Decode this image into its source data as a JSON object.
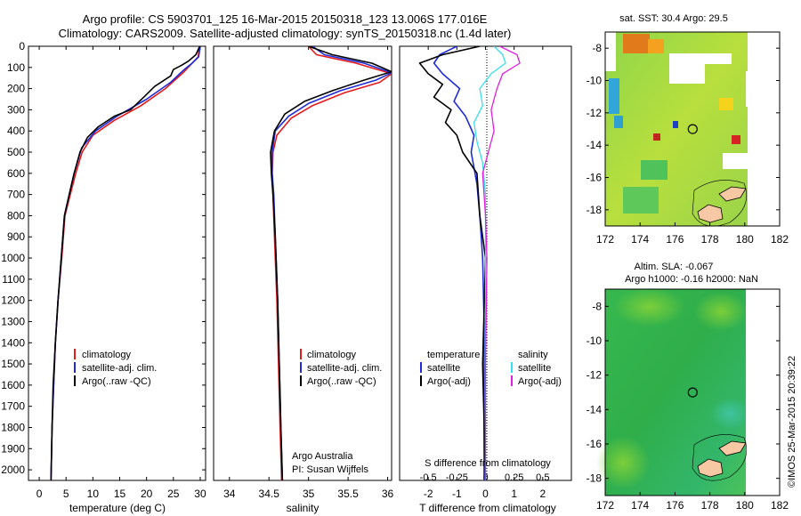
{
  "header": {
    "line1": "Argo profile: CS 5903701_125 16-Mar-2015 20150318_123 13.006S 177.016E",
    "line2": "Climatology: CARS2009. Satellite-adjusted climatology: synTS_20150318.nc (1.4d later)"
  },
  "colors": {
    "climatology": "#e41a1c",
    "satellite": "#1f2bd6",
    "argo": "#000000",
    "sal_satellite": "#33e0f0",
    "sal_argo": "#e020e0"
  },
  "chart_data": [
    {
      "type": "line",
      "name": "temperature-profile",
      "xlabel": "temperature (deg C)",
      "ylabel": "",
      "xlim": [
        -2,
        31
      ],
      "ylim": [
        2050,
        0
      ],
      "xticks": [
        0,
        5,
        10,
        15,
        20,
        25,
        30
      ],
      "yticks": [
        0,
        100,
        200,
        300,
        400,
        500,
        600,
        700,
        800,
        900,
        1000,
        1100,
        1200,
        1300,
        1400,
        1500,
        1600,
        1700,
        1800,
        1900,
        2000
      ],
      "legend": [
        "climatology",
        "satellite-adj. clim.",
        "Argo(..raw -QC)"
      ],
      "series": [
        {
          "name": "climatology",
          "x": [
            29.9,
            29.6,
            28.5,
            27.0,
            23.5,
            19.0,
            14.0,
            10.0,
            8.0,
            6.8,
            5.8,
            4.8,
            4.2,
            3.5,
            3.0,
            2.7,
            2.4,
            2.2
          ],
          "y": [
            0,
            50,
            80,
            120,
            200,
            280,
            350,
            420,
            500,
            600,
            700,
            800,
            1000,
            1200,
            1400,
            1600,
            1800,
            2050
          ]
        },
        {
          "name": "satellite-adj. clim.",
          "x": [
            30.0,
            29.7,
            28.5,
            27.0,
            24.5,
            20.0,
            14.5,
            10.5,
            7.9,
            6.5,
            5.6,
            4.7,
            4.1,
            3.5,
            3.0,
            2.7,
            2.4,
            2.2
          ],
          "y": [
            0,
            50,
            80,
            110,
            170,
            250,
            330,
            400,
            480,
            600,
            700,
            800,
            1000,
            1200,
            1400,
            1600,
            1800,
            2050
          ]
        },
        {
          "name": "Argo(..raw -QC)",
          "x": [
            29.9,
            29.2,
            27.8,
            26.5,
            25.0,
            24.5,
            21.5,
            19.5,
            17.0,
            14.0,
            11.0,
            9.0,
            7.6,
            6.5,
            5.6,
            4.7,
            4.1,
            3.5,
            3.0,
            2.6,
            2.4,
            2.2
          ],
          "y": [
            0,
            40,
            70,
            90,
            110,
            140,
            190,
            240,
            300,
            330,
            380,
            430,
            500,
            600,
            700,
            800,
            1000,
            1200,
            1400,
            1600,
            1800,
            2050
          ]
        }
      ]
    },
    {
      "type": "line",
      "name": "salinity-profile",
      "xlabel": "salinity",
      "xlim": [
        33.8,
        36.05
      ],
      "ylim": [
        2050,
        0
      ],
      "xticks": [
        34,
        34.5,
        35,
        35.5,
        36
      ],
      "xticklabels": [
        "34",
        "34.5",
        "35",
        "35.5",
        "36"
      ],
      "legend": [
        "climatology",
        "satellite-adj. clim.",
        "Argo(..raw -QC)"
      ],
      "credit": [
        "Argo Australia",
        "PI: Susan Wijffels"
      ],
      "series": [
        {
          "name": "climatology",
          "x": [
            35.0,
            35.1,
            35.6,
            36.05,
            35.9,
            35.45,
            35.05,
            34.78,
            34.6,
            34.55,
            34.54,
            34.55,
            34.57,
            34.6,
            34.62,
            34.64,
            34.66
          ],
          "y": [
            0,
            40,
            80,
            130,
            170,
            220,
            280,
            340,
            420,
            500,
            600,
            700,
            900,
            1200,
            1500,
            1800,
            2050
          ]
        },
        {
          "name": "satellite-adj. clim.",
          "x": [
            35.05,
            35.2,
            35.7,
            36.05,
            35.85,
            35.4,
            35.0,
            34.75,
            34.58,
            34.54,
            34.54,
            34.56,
            34.58,
            34.61,
            34.63,
            34.65,
            34.67
          ],
          "y": [
            0,
            40,
            80,
            125,
            160,
            210,
            270,
            330,
            400,
            500,
            600,
            700,
            900,
            1200,
            1500,
            1800,
            2050
          ]
        },
        {
          "name": "Argo(..raw -QC)",
          "x": [
            35.0,
            35.3,
            35.8,
            36.05,
            35.7,
            35.3,
            34.95,
            34.7,
            34.57,
            34.52,
            34.53,
            34.55,
            34.58,
            34.61,
            34.63,
            34.65,
            34.67
          ],
          "y": [
            0,
            40,
            80,
            120,
            160,
            210,
            260,
            320,
            400,
            500,
            600,
            700,
            900,
            1200,
            1500,
            1800,
            2050
          ]
        }
      ]
    },
    {
      "type": "line",
      "name": "difference-profile",
      "xlabel": "T difference from climatology",
      "top_label": "S difference from climatology",
      "xlim": [
        -3,
        3
      ],
      "ylim": [
        2050,
        0
      ],
      "xticks_T": [
        -2,
        -1,
        0,
        1,
        2
      ],
      "xticks_S": [
        -1,
        -0.5,
        0,
        0.5,
        1
      ],
      "xticklabels_S": [
        "-0.5",
        "-0.25",
        "0",
        "0.25",
        "0.5"
      ],
      "legend_temperature": [
        "temperature",
        "satellite",
        "Argo(-adj)"
      ],
      "legend_salinity": [
        "salinity",
        "satellite",
        "Argo(-adj)"
      ],
      "series": [
        {
          "name": "temperature satellite",
          "x": [
            -1.0,
            -1.6,
            -1.8,
            -1.5,
            -0.9,
            -1.1,
            -0.7,
            -0.4,
            -0.5,
            -0.3,
            -0.2,
            -0.1,
            -0.05,
            -0.05,
            -0.05
          ],
          "y": [
            0,
            40,
            80,
            130,
            200,
            260,
            330,
            420,
            500,
            650,
            800,
            1000,
            1300,
            1600,
            2050
          ]
        },
        {
          "name": "temperature Argo(-adj)",
          "x": [
            -0.2,
            -1.5,
            -2.3,
            -2.0,
            -1.5,
            -1.8,
            -1.2,
            -1.4,
            -1.0,
            -0.8,
            -0.3,
            -0.2,
            0.0,
            -0.1,
            0.0
          ],
          "y": [
            0,
            40,
            80,
            130,
            180,
            240,
            300,
            360,
            420,
            500,
            600,
            800,
            1000,
            1500,
            2050
          ]
        },
        {
          "name": "salinity satellite",
          "x": [
            0.3,
            0.6,
            0.7,
            0.2,
            -0.2,
            -0.1,
            -0.4,
            -0.3,
            -0.1,
            0.0,
            0.0,
            0.0
          ],
          "y": [
            0,
            40,
            80,
            130,
            200,
            280,
            360,
            450,
            550,
            700,
            1200,
            2050
          ]
        },
        {
          "name": "salinity Argo(-adj)",
          "x": [
            0.5,
            1.1,
            1.2,
            0.6,
            0.4,
            0.2,
            0.3,
            0.1,
            -0.1,
            0.0,
            0.05,
            0.0,
            0.0
          ],
          "y": [
            0,
            40,
            80,
            130,
            200,
            300,
            400,
            500,
            600,
            800,
            1000,
            1500,
            2050
          ]
        }
      ]
    },
    {
      "type": "heatmap",
      "name": "sst-map",
      "title": "sat. SST: 30.4  Argo: 29.5",
      "xlim": [
        172,
        182
      ],
      "ylim": [
        -19,
        -7
      ],
      "xticks": [
        172,
        174,
        176,
        178,
        180,
        182
      ],
      "yticks": [
        -8,
        -10,
        -12,
        -14,
        -16,
        -18
      ],
      "argo_position": {
        "lon": 177.016,
        "lat": -13.006
      }
    },
    {
      "type": "heatmap",
      "name": "sla-map",
      "title_line1": "Altim. SLA: -0.067",
      "title_line2": "Argo h1000: -0.16 h2000: NaN",
      "xlim": [
        172,
        182
      ],
      "ylim": [
        -19,
        -7
      ],
      "xticks": [
        172,
        174,
        176,
        178,
        180,
        182
      ],
      "yticks": [
        -8,
        -10,
        -12,
        -14,
        -16,
        -18
      ],
      "argo_position": {
        "lon": 177.016,
        "lat": -13.006
      }
    }
  ],
  "footer": {
    "timestamp": "©IMOS 25-Mar-2015 20:39:22"
  }
}
